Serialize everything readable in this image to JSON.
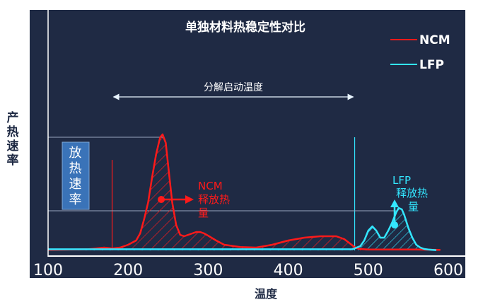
{
  "chart_data": {
    "type": "line",
    "title": "单独材料热稳定性对比",
    "xlabel": "温度",
    "ylabel": "产热速率",
    "xlim": [
      100,
      600
    ],
    "xticks": [
      "100",
      "200",
      "300",
      "400",
      "500",
      "600"
    ],
    "legend": "top-right",
    "grid": false,
    "series": [
      {
        "name": "NCM",
        "color": "#ff1a1a",
        "x": [
          100,
          150,
          170,
          180,
          190,
          200,
          210,
          215,
          220,
          225,
          230,
          235,
          240,
          243,
          247,
          250,
          255,
          260,
          265,
          270,
          275,
          280,
          285,
          290,
          295,
          300,
          310,
          320,
          340,
          360,
          380,
          400,
          420,
          440,
          460,
          470,
          480,
          485,
          490,
          500,
          520,
          560,
          590
        ],
        "y": [
          0.2,
          0.4,
          1.0,
          0.7,
          1.0,
          2.0,
          3.5,
          6.0,
          11.0,
          17.0,
          26.0,
          34.0,
          40.0,
          41.0,
          38.0,
          30.0,
          17.0,
          9.0,
          5.5,
          5.0,
          5.5,
          6.0,
          6.5,
          6.5,
          6.0,
          5.2,
          3.5,
          2.0,
          1.2,
          1.0,
          2.0,
          3.5,
          4.5,
          5.0,
          5.0,
          4.0,
          1.8,
          0.8,
          0.5,
          0.3,
          0.3,
          0.3,
          0.2
        ]
      },
      {
        "name": "LFP",
        "color": "#33e6ff",
        "x": [
          100,
          200,
          300,
          400,
          480,
          490,
          495,
          500,
          505,
          510,
          515,
          520,
          525,
          530,
          535,
          538,
          542,
          545,
          550,
          555,
          560,
          565,
          570,
          575,
          580,
          585
        ],
        "y": [
          0.4,
          0.4,
          0.4,
          0.4,
          0.4,
          1.5,
          3.5,
          7.0,
          8.5,
          7.0,
          4.5,
          4.5,
          7.0,
          10.0,
          13.5,
          15.0,
          14.5,
          12.5,
          8.0,
          4.5,
          2.0,
          1.0,
          0.5,
          0.3,
          0.2,
          0.1
        ]
      }
    ],
    "markers": [
      {
        "x": 180,
        "y_top": 32
      },
      {
        "x": 483,
        "y_top": 40
      }
    ],
    "span_label": "分解启动温度",
    "box_label": [
      "放",
      "热",
      "速",
      "率"
    ],
    "ncm_annotation": [
      "NCM",
      "释放热",
      "量"
    ],
    "lfp_annotation": [
      "LFP",
      "释放热",
      "量"
    ],
    "colors": {
      "background": "#1f2a44",
      "ncm": "#ff1a1a",
      "lfp": "#33e6ff",
      "box": "#3a73b8",
      "axis": "#ffffff"
    }
  }
}
